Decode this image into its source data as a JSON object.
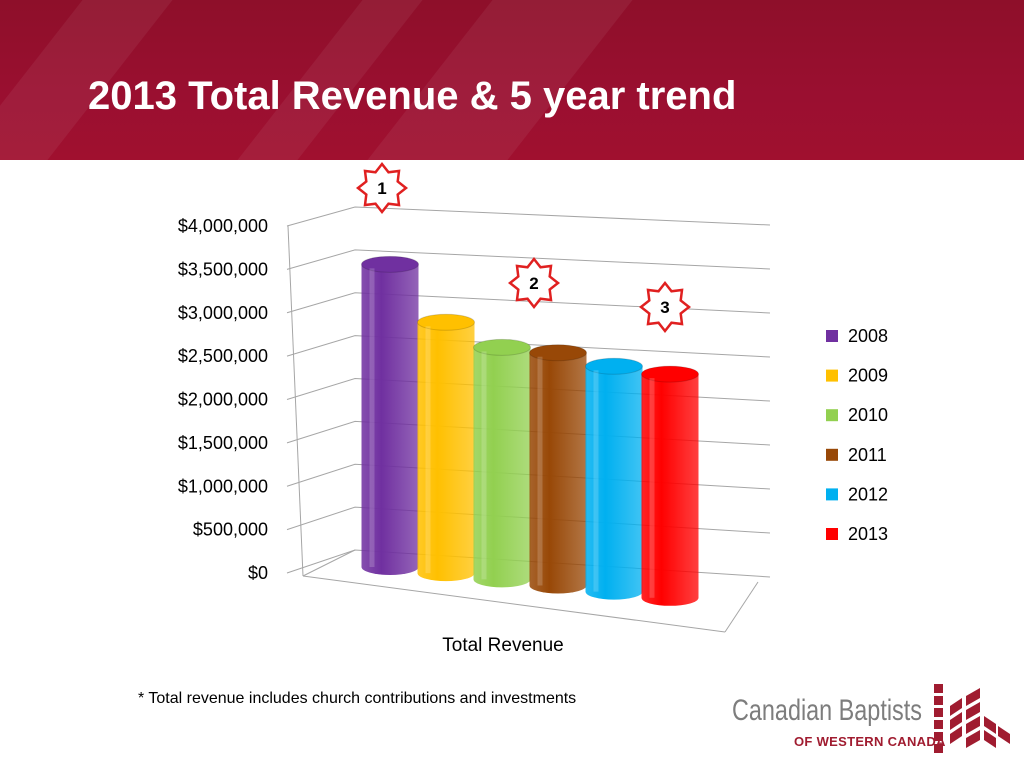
{
  "slide": {
    "title": "2013 Total Revenue & 5 year trend",
    "footnote": "* Total revenue includes church contributions and investments"
  },
  "logo": {
    "name": "Canadian Baptists",
    "sub": "OF WESTERN CANADA"
  },
  "colors": {
    "header": "#9a0f30",
    "marker_outline": "#e02020"
  },
  "chart_data": {
    "type": "bar",
    "xlabel": "Total Revenue",
    "ylabel": "",
    "ylim": [
      0,
      4000000
    ],
    "y_ticks": [
      "$0",
      "$500,000",
      "$1,000,000",
      "$1,500,000",
      "$2,000,000",
      "$2,500,000",
      "$3,000,000",
      "$3,500,000",
      "$4,000,000"
    ],
    "grid": true,
    "legend_position": "right",
    "categories": [
      "Total Revenue"
    ],
    "series": [
      {
        "name": "2008",
        "values": [
          3680000
        ],
        "color": "#7030a0"
      },
      {
        "name": "2009",
        "values": [
          3050000
        ],
        "color": "#ffc000"
      },
      {
        "name": "2010",
        "values": [
          2820000
        ],
        "color": "#92d050"
      },
      {
        "name": "2011",
        "values": [
          2830000
        ],
        "color": "#984807"
      },
      {
        "name": "2012",
        "values": [
          2740000
        ],
        "color": "#00b0f0"
      },
      {
        "name": "2013",
        "values": [
          2720000
        ],
        "color": "#ff0000"
      }
    ],
    "annotations": [
      "1",
      "2",
      "3"
    ]
  }
}
